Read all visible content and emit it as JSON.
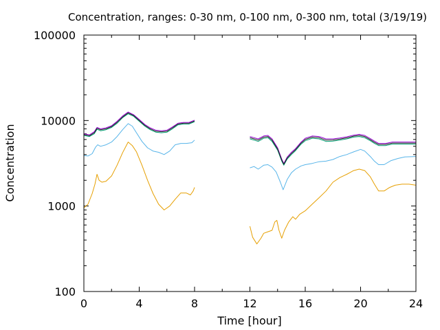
{
  "chart_data": {
    "type": "line",
    "title": "Concentration, ranges: 0-30 nm, 0-100 nm, 0-300 nm, total (3/19/19)",
    "xlabel": "Time [hour]",
    "ylabel": "Concentration",
    "xlim": [
      0,
      24
    ],
    "ylim": [
      100,
      100000
    ],
    "yscale": "log",
    "grid": false,
    "x_ticks": [
      0,
      4,
      8,
      12,
      16,
      20,
      24
    ],
    "x_tick_labels": [
      "0",
      "4",
      "8",
      "12",
      "16",
      "20",
      "24"
    ],
    "y_ticks": [
      100,
      1000,
      10000,
      100000
    ],
    "y_tick_labels": [
      "100",
      "1000",
      "10000",
      "100000"
    ],
    "series": [
      {
        "color": "#e69f00",
        "segments": [
          [
            [
              0,
              950
            ],
            [
              0.3,
              1050
            ],
            [
              0.6,
              1400
            ],
            [
              0.8,
              1800
            ],
            [
              0.95,
              2350
            ],
            [
              1.1,
              2000
            ],
            [
              1.3,
              1900
            ],
            [
              1.6,
              1950
            ],
            [
              2.0,
              2250
            ],
            [
              2.4,
              3000
            ],
            [
              2.8,
              4200
            ],
            [
              3.2,
              5600
            ],
            [
              3.5,
              5100
            ],
            [
              3.8,
              4300
            ],
            [
              4.2,
              3000
            ],
            [
              4.6,
              2000
            ],
            [
              5.0,
              1400
            ],
            [
              5.4,
              1050
            ],
            [
              5.8,
              900
            ],
            [
              6.2,
              1000
            ],
            [
              6.6,
              1200
            ],
            [
              7.0,
              1420
            ],
            [
              7.4,
              1420
            ],
            [
              7.7,
              1350
            ],
            [
              7.9,
              1500
            ],
            [
              8.0,
              1650
            ]
          ],
          [
            [
              12,
              580
            ],
            [
              12.2,
              430
            ],
            [
              12.5,
              360
            ],
            [
              12.8,
              420
            ],
            [
              13.0,
              480
            ],
            [
              13.3,
              500
            ],
            [
              13.6,
              520
            ],
            [
              13.8,
              650
            ],
            [
              13.95,
              680
            ],
            [
              14.1,
              520
            ],
            [
              14.3,
              420
            ],
            [
              14.5,
              520
            ],
            [
              14.8,
              650
            ],
            [
              15.1,
              750
            ],
            [
              15.3,
              700
            ],
            [
              15.6,
              800
            ],
            [
              16.0,
              880
            ],
            [
              16.5,
              1050
            ],
            [
              17.0,
              1250
            ],
            [
              17.5,
              1500
            ],
            [
              18.0,
              1900
            ],
            [
              18.5,
              2150
            ],
            [
              19.0,
              2350
            ],
            [
              19.5,
              2600
            ],
            [
              19.9,
              2700
            ],
            [
              20.3,
              2600
            ],
            [
              20.7,
              2200
            ],
            [
              21.0,
              1800
            ],
            [
              21.3,
              1500
            ],
            [
              21.7,
              1500
            ],
            [
              22.1,
              1650
            ],
            [
              22.5,
              1750
            ],
            [
              23.0,
              1800
            ],
            [
              23.5,
              1800
            ],
            [
              24.0,
              1750
            ]
          ]
        ]
      },
      {
        "color": "#56b4e9",
        "segments": [
          [
            [
              0,
              3900
            ],
            [
              0.3,
              3850
            ],
            [
              0.6,
              4100
            ],
            [
              0.85,
              4900
            ],
            [
              1.0,
              5200
            ],
            [
              1.2,
              5000
            ],
            [
              1.6,
              5200
            ],
            [
              2.0,
              5600
            ],
            [
              2.4,
              6500
            ],
            [
              2.8,
              7800
            ],
            [
              3.2,
              9200
            ],
            [
              3.5,
              8600
            ],
            [
              3.8,
              7200
            ],
            [
              4.2,
              5700
            ],
            [
              4.6,
              4800
            ],
            [
              5.0,
              4400
            ],
            [
              5.4,
              4250
            ],
            [
              5.8,
              4000
            ],
            [
              6.2,
              4400
            ],
            [
              6.6,
              5200
            ],
            [
              7.0,
              5400
            ],
            [
              7.4,
              5400
            ],
            [
              7.8,
              5500
            ],
            [
              8.0,
              5900
            ]
          ],
          [
            [
              12,
              2800
            ],
            [
              12.3,
              2900
            ],
            [
              12.6,
              2700
            ],
            [
              13.0,
              3000
            ],
            [
              13.3,
              3050
            ],
            [
              13.6,
              2850
            ],
            [
              13.9,
              2500
            ],
            [
              14.2,
              1900
            ],
            [
              14.4,
              1550
            ],
            [
              14.7,
              2050
            ],
            [
              15.0,
              2450
            ],
            [
              15.3,
              2700
            ],
            [
              15.7,
              2950
            ],
            [
              16.0,
              3050
            ],
            [
              16.5,
              3150
            ],
            [
              17.0,
              3300
            ],
            [
              17.5,
              3350
            ],
            [
              18.0,
              3500
            ],
            [
              18.5,
              3800
            ],
            [
              19.0,
              4000
            ],
            [
              19.5,
              4300
            ],
            [
              20.0,
              4600
            ],
            [
              20.3,
              4400
            ],
            [
              20.7,
              3800
            ],
            [
              21.0,
              3350
            ],
            [
              21.3,
              3050
            ],
            [
              21.7,
              3050
            ],
            [
              22.2,
              3400
            ],
            [
              22.7,
              3600
            ],
            [
              23.2,
              3750
            ],
            [
              24.0,
              3800
            ]
          ]
        ]
      },
      {
        "color": "#009e73",
        "segments": [
          [
            [
              0,
              6700
            ],
            [
              0.4,
              6500
            ],
            [
              0.75,
              7000
            ],
            [
              0.95,
              7900
            ],
            [
              1.2,
              7600
            ],
            [
              1.6,
              7800
            ],
            [
              2.0,
              8300
            ],
            [
              2.4,
              9300
            ],
            [
              2.8,
              10800
            ],
            [
              3.2,
              12000
            ],
            [
              3.6,
              11200
            ],
            [
              4.0,
              9800
            ],
            [
              4.4,
              8600
            ],
            [
              4.8,
              7800
            ],
            [
              5.2,
              7300
            ],
            [
              5.6,
              7200
            ],
            [
              6.0,
              7300
            ],
            [
              6.4,
              8000
            ],
            [
              6.8,
              8900
            ],
            [
              7.2,
              9100
            ],
            [
              7.6,
              9100
            ],
            [
              8.0,
              9700
            ]
          ],
          [
            [
              12,
              6100
            ],
            [
              12.3,
              5900
            ],
            [
              12.6,
              5700
            ],
            [
              13.0,
              6200
            ],
            [
              13.3,
              6300
            ],
            [
              13.6,
              5700
            ],
            [
              14.0,
              4500
            ],
            [
              14.3,
              3350
            ],
            [
              14.45,
              3000
            ],
            [
              14.7,
              3550
            ],
            [
              15.0,
              4000
            ],
            [
              15.3,
              4450
            ],
            [
              15.7,
              5300
            ],
            [
              16.0,
              5800
            ],
            [
              16.5,
              6200
            ],
            [
              17.0,
              6100
            ],
            [
              17.5,
              5700
            ],
            [
              18.0,
              5750
            ],
            [
              18.5,
              5900
            ],
            [
              19.0,
              6100
            ],
            [
              19.5,
              6400
            ],
            [
              19.9,
              6500
            ],
            [
              20.3,
              6300
            ],
            [
              20.7,
              5800
            ],
            [
              21.0,
              5400
            ],
            [
              21.3,
              5100
            ],
            [
              21.8,
              5100
            ],
            [
              22.3,
              5300
            ],
            [
              22.8,
              5300
            ],
            [
              23.3,
              5300
            ],
            [
              24.0,
              5300
            ]
          ]
        ]
      },
      {
        "color": "#9400d3",
        "segments": [
          [
            [
              0,
              7000
            ],
            [
              0.4,
              6800
            ],
            [
              0.75,
              7400
            ],
            [
              0.95,
              8300
            ],
            [
              1.2,
              8000
            ],
            [
              1.6,
              8200
            ],
            [
              2.0,
              8700
            ],
            [
              2.4,
              9800
            ],
            [
              2.8,
              11300
            ],
            [
              3.2,
              12600
            ],
            [
              3.6,
              11700
            ],
            [
              4.0,
              10300
            ],
            [
              4.4,
              9000
            ],
            [
              4.8,
              8200
            ],
            [
              5.2,
              7700
            ],
            [
              5.6,
              7600
            ],
            [
              6.0,
              7700
            ],
            [
              6.4,
              8400
            ],
            [
              6.8,
              9300
            ],
            [
              7.2,
              9500
            ],
            [
              7.6,
              9500
            ],
            [
              8.0,
              10100
            ]
          ],
          [
            [
              12,
              6500
            ],
            [
              12.3,
              6300
            ],
            [
              12.6,
              6100
            ],
            [
              13.0,
              6600
            ],
            [
              13.3,
              6700
            ],
            [
              13.6,
              6100
            ],
            [
              14.0,
              4800
            ],
            [
              14.3,
              3550
            ],
            [
              14.45,
              3150
            ],
            [
              14.7,
              3750
            ],
            [
              15.0,
              4250
            ],
            [
              15.3,
              4700
            ],
            [
              15.7,
              5600
            ],
            [
              16.0,
              6200
            ],
            [
              16.5,
              6600
            ],
            [
              17.0,
              6500
            ],
            [
              17.5,
              6100
            ],
            [
              18.0,
              6100
            ],
            [
              18.5,
              6250
            ],
            [
              19.0,
              6450
            ],
            [
              19.5,
              6750
            ],
            [
              19.9,
              6900
            ],
            [
              20.3,
              6700
            ],
            [
              20.7,
              6150
            ],
            [
              21.0,
              5750
            ],
            [
              21.3,
              5400
            ],
            [
              21.8,
              5400
            ],
            [
              22.3,
              5600
            ],
            [
              22.8,
              5600
            ],
            [
              23.3,
              5600
            ],
            [
              24.0,
              5600
            ]
          ]
        ]
      },
      {
        "color": "#222222",
        "segments": [
          [
            [
              0,
              6850
            ],
            [
              0.4,
              6650
            ],
            [
              0.75,
              7200
            ],
            [
              0.95,
              8100
            ],
            [
              1.2,
              7800
            ],
            [
              1.6,
              8000
            ],
            [
              2.0,
              8500
            ],
            [
              2.4,
              9550
            ],
            [
              2.8,
              11000
            ],
            [
              3.2,
              12300
            ],
            [
              3.6,
              11450
            ],
            [
              4.0,
              10050
            ],
            [
              4.4,
              8800
            ],
            [
              4.8,
              8000
            ],
            [
              5.2,
              7500
            ],
            [
              5.6,
              7400
            ],
            [
              6.0,
              7500
            ],
            [
              6.4,
              8200
            ],
            [
              6.8,
              9100
            ],
            [
              7.2,
              9300
            ],
            [
              7.6,
              9300
            ],
            [
              8.0,
              9900
            ]
          ],
          [
            [
              12,
              6300
            ],
            [
              12.3,
              6100
            ],
            [
              12.6,
              5900
            ],
            [
              13.0,
              6400
            ],
            [
              13.3,
              6500
            ],
            [
              13.6,
              5900
            ],
            [
              14.0,
              4650
            ],
            [
              14.3,
              3450
            ],
            [
              14.45,
              3080
            ],
            [
              14.7,
              3650
            ],
            [
              15.0,
              4120
            ],
            [
              15.3,
              4570
            ],
            [
              15.7,
              5450
            ],
            [
              16.0,
              6000
            ],
            [
              16.5,
              6400
            ],
            [
              17.0,
              6300
            ],
            [
              17.5,
              5900
            ],
            [
              18.0,
              5920
            ],
            [
              18.5,
              6070
            ],
            [
              19.0,
              6270
            ],
            [
              19.5,
              6570
            ],
            [
              19.9,
              6700
            ],
            [
              20.3,
              6500
            ],
            [
              20.7,
              5970
            ],
            [
              21.0,
              5570
            ],
            [
              21.3,
              5250
            ],
            [
              21.8,
              5250
            ],
            [
              22.3,
              5450
            ],
            [
              22.8,
              5450
            ],
            [
              23.3,
              5450
            ],
            [
              24.0,
              5450
            ]
          ]
        ]
      }
    ]
  }
}
